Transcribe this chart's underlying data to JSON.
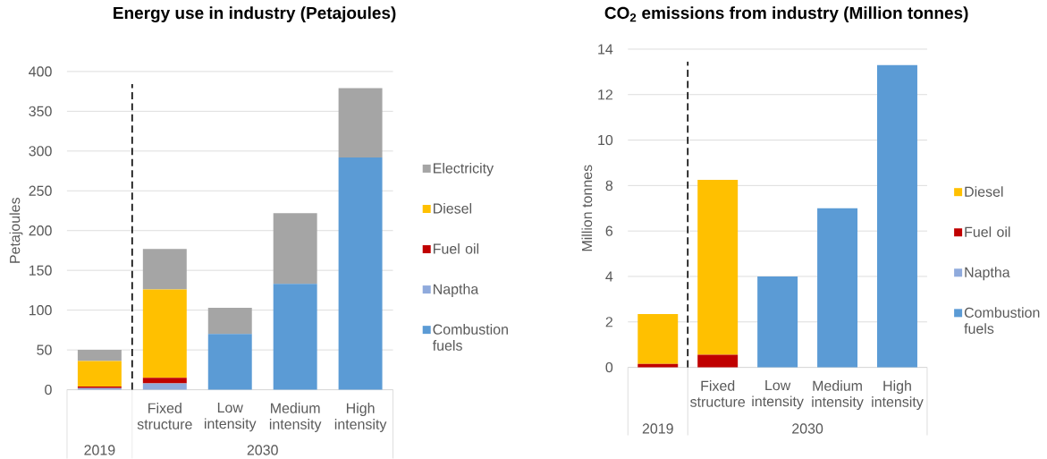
{
  "chart_data": [
    {
      "type": "bar",
      "title": "Energy use in industry (Petajoules)",
      "ylabel": "Petajoules",
      "categories": [
        null,
        "Fixed structure",
        "Low intensity",
        "Medium intensity",
        "High intensity"
      ],
      "stacked": true,
      "series": [
        {
          "name": "Combustion fuels",
          "color": "#5b9bd5",
          "values": [
            0,
            0,
            70,
            133,
            292
          ]
        },
        {
          "name": "Naptha",
          "color": "#8faadc",
          "values": [
            2,
            8,
            0,
            0,
            0
          ]
        },
        {
          "name": "Fuel oil",
          "color": "#c00000",
          "values": [
            2,
            7,
            0,
            0,
            0
          ]
        },
        {
          "name": "Diesel",
          "color": "#ffc000",
          "values": [
            32,
            111,
            0,
            0,
            0
          ]
        },
        {
          "name": "Electricity",
          "color": "#a5a5a5",
          "values": [
            14,
            51,
            33,
            89,
            87
          ]
        }
      ],
      "ylim": [
        0,
        400
      ],
      "yticks": [
        0,
        50,
        100,
        150,
        200,
        250,
        300,
        350,
        400
      ],
      "grid": "y",
      "legend": "right",
      "annotations": [
        "2019",
        "2030"
      ]
    },
    {
      "type": "bar",
      "title": "CO$_{2}$ emissions from industry (Million tonnes)",
      "ylabel": "Million tonnes",
      "categories": [
        null,
        "Fixed structure",
        "Low intensity",
        "Medium intensity",
        "High intensity"
      ],
      "stacked": true,
      "series": [
        {
          "name": "Combustion fuels",
          "color": "#5b9bd5",
          "values": [
            0,
            0,
            4,
            7,
            13.3
          ]
        },
        {
          "name": "Naptha",
          "color": "#8faadc",
          "values": [
            0,
            0,
            0,
            0,
            0
          ]
        },
        {
          "name": "Fuel oil",
          "color": "#c00000",
          "values": [
            0.15,
            0.55,
            0,
            0,
            0
          ]
        },
        {
          "name": "Diesel",
          "color": "#ffc000",
          "values": [
            2.2,
            7.7,
            0,
            0,
            0
          ]
        }
      ],
      "ylim": [
        0,
        14
      ],
      "yticks": [
        0,
        2,
        4,
        6,
        8,
        10,
        12,
        14
      ],
      "grid": "y",
      "legend": "right",
      "annotations": [
        "2019",
        "2030"
      ]
    }
  ]
}
